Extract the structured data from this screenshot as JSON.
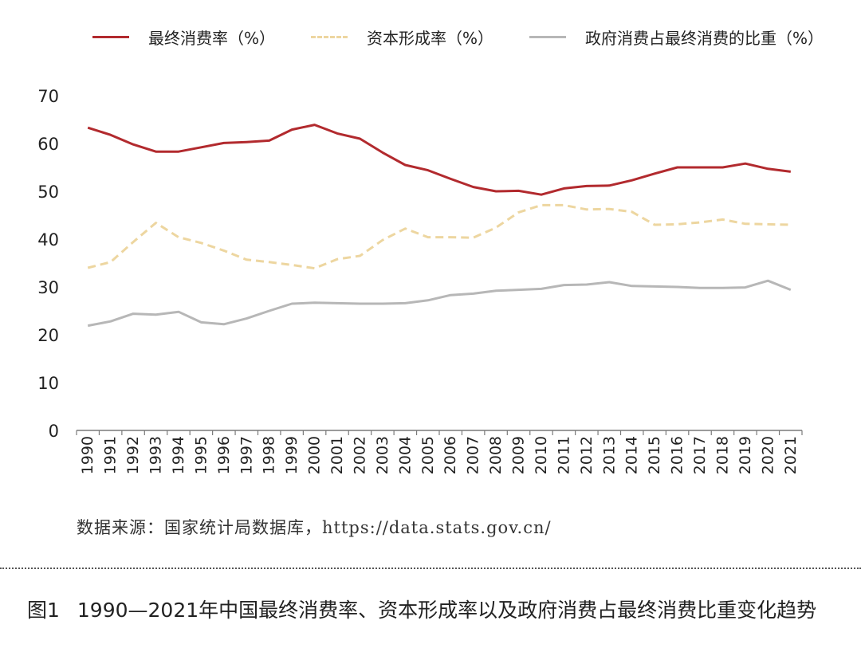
{
  "legend": {
    "s0": "最终消费率（%）",
    "s1": "资本形成率（%）",
    "s2": "政府消费占最终消费的比重（%）"
  },
  "source": "数据来源：国家统计局数据库，https://data.stats.gov.cn/",
  "caption": {
    "label": "图1",
    "text": "1990—2021年中国最终消费率、资本形成率以及政府消费占最终消费比重变化趋势"
  },
  "chart_data": {
    "type": "line",
    "x": [
      "1990",
      "1991",
      "1992",
      "1993",
      "1994",
      "1995",
      "1996",
      "1997",
      "1998",
      "1999",
      "2000",
      "2001",
      "2002",
      "2003",
      "2004",
      "2005",
      "2006",
      "2007",
      "2008",
      "2009",
      "2010",
      "2011",
      "2012",
      "2013",
      "2014",
      "2015",
      "2016",
      "2017",
      "2018",
      "2019",
      "2020",
      "2021"
    ],
    "ylim": [
      0,
      70
    ],
    "yticks": [
      0,
      10,
      20,
      30,
      40,
      50,
      60,
      70
    ],
    "grid": false,
    "legend_position": "top",
    "series": [
      {
        "name": "最终消费率（%）",
        "color": "#b22a2e",
        "style": "solid",
        "values": [
          63.3,
          61.8,
          59.8,
          58.3,
          58.3,
          59.2,
          60.1,
          60.3,
          60.6,
          62.9,
          63.9,
          62.1,
          61.0,
          58.1,
          55.5,
          54.4,
          52.6,
          50.9,
          50.0,
          50.1,
          49.3,
          50.6,
          51.1,
          51.2,
          52.3,
          53.7,
          55.0,
          55.0,
          55.0,
          55.8,
          54.7,
          54.1
        ]
      },
      {
        "name": "资本形成率（%）",
        "color": "#edd6a0",
        "style": "dashed",
        "values": [
          34.0,
          35.2,
          39.4,
          43.4,
          40.4,
          39.2,
          37.6,
          35.7,
          35.2,
          34.6,
          33.9,
          35.8,
          36.5,
          39.8,
          42.2,
          40.4,
          40.4,
          40.3,
          42.4,
          45.6,
          47.1,
          47.1,
          46.2,
          46.3,
          45.7,
          43.0,
          43.1,
          43.5,
          44.1,
          43.2,
          43.1,
          43.0
        ]
      },
      {
        "name": "政府消费占最终消费的比重（%）",
        "color": "#b7b7b7",
        "style": "solid",
        "values": [
          21.9,
          22.8,
          24.4,
          24.2,
          24.8,
          22.6,
          22.2,
          23.4,
          25.0,
          26.5,
          26.7,
          26.6,
          26.5,
          26.5,
          26.6,
          27.2,
          28.3,
          28.6,
          29.2,
          29.4,
          29.6,
          30.4,
          30.5,
          31.0,
          30.2,
          30.1,
          30.0,
          29.8,
          29.8,
          29.9,
          31.3,
          29.4
        ]
      }
    ]
  }
}
